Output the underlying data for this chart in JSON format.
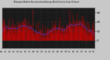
{
  "title": "Milwaukee Weather Normalized and Average Wind Direction (Last 24 Hours)",
  "background_color": "#c8c8c8",
  "plot_bg_color": "#1a1a1a",
  "grid_color": "#555555",
  "n_points": 288,
  "red_color": "#ff0000",
  "blue_color": "#4444ff",
  "ylim": [
    -8,
    35
  ],
  "yticks": [
    0,
    10,
    20,
    30
  ],
  "ytick_labels": [
    "0",
    "10",
    "20",
    "30"
  ],
  "seed": 42
}
